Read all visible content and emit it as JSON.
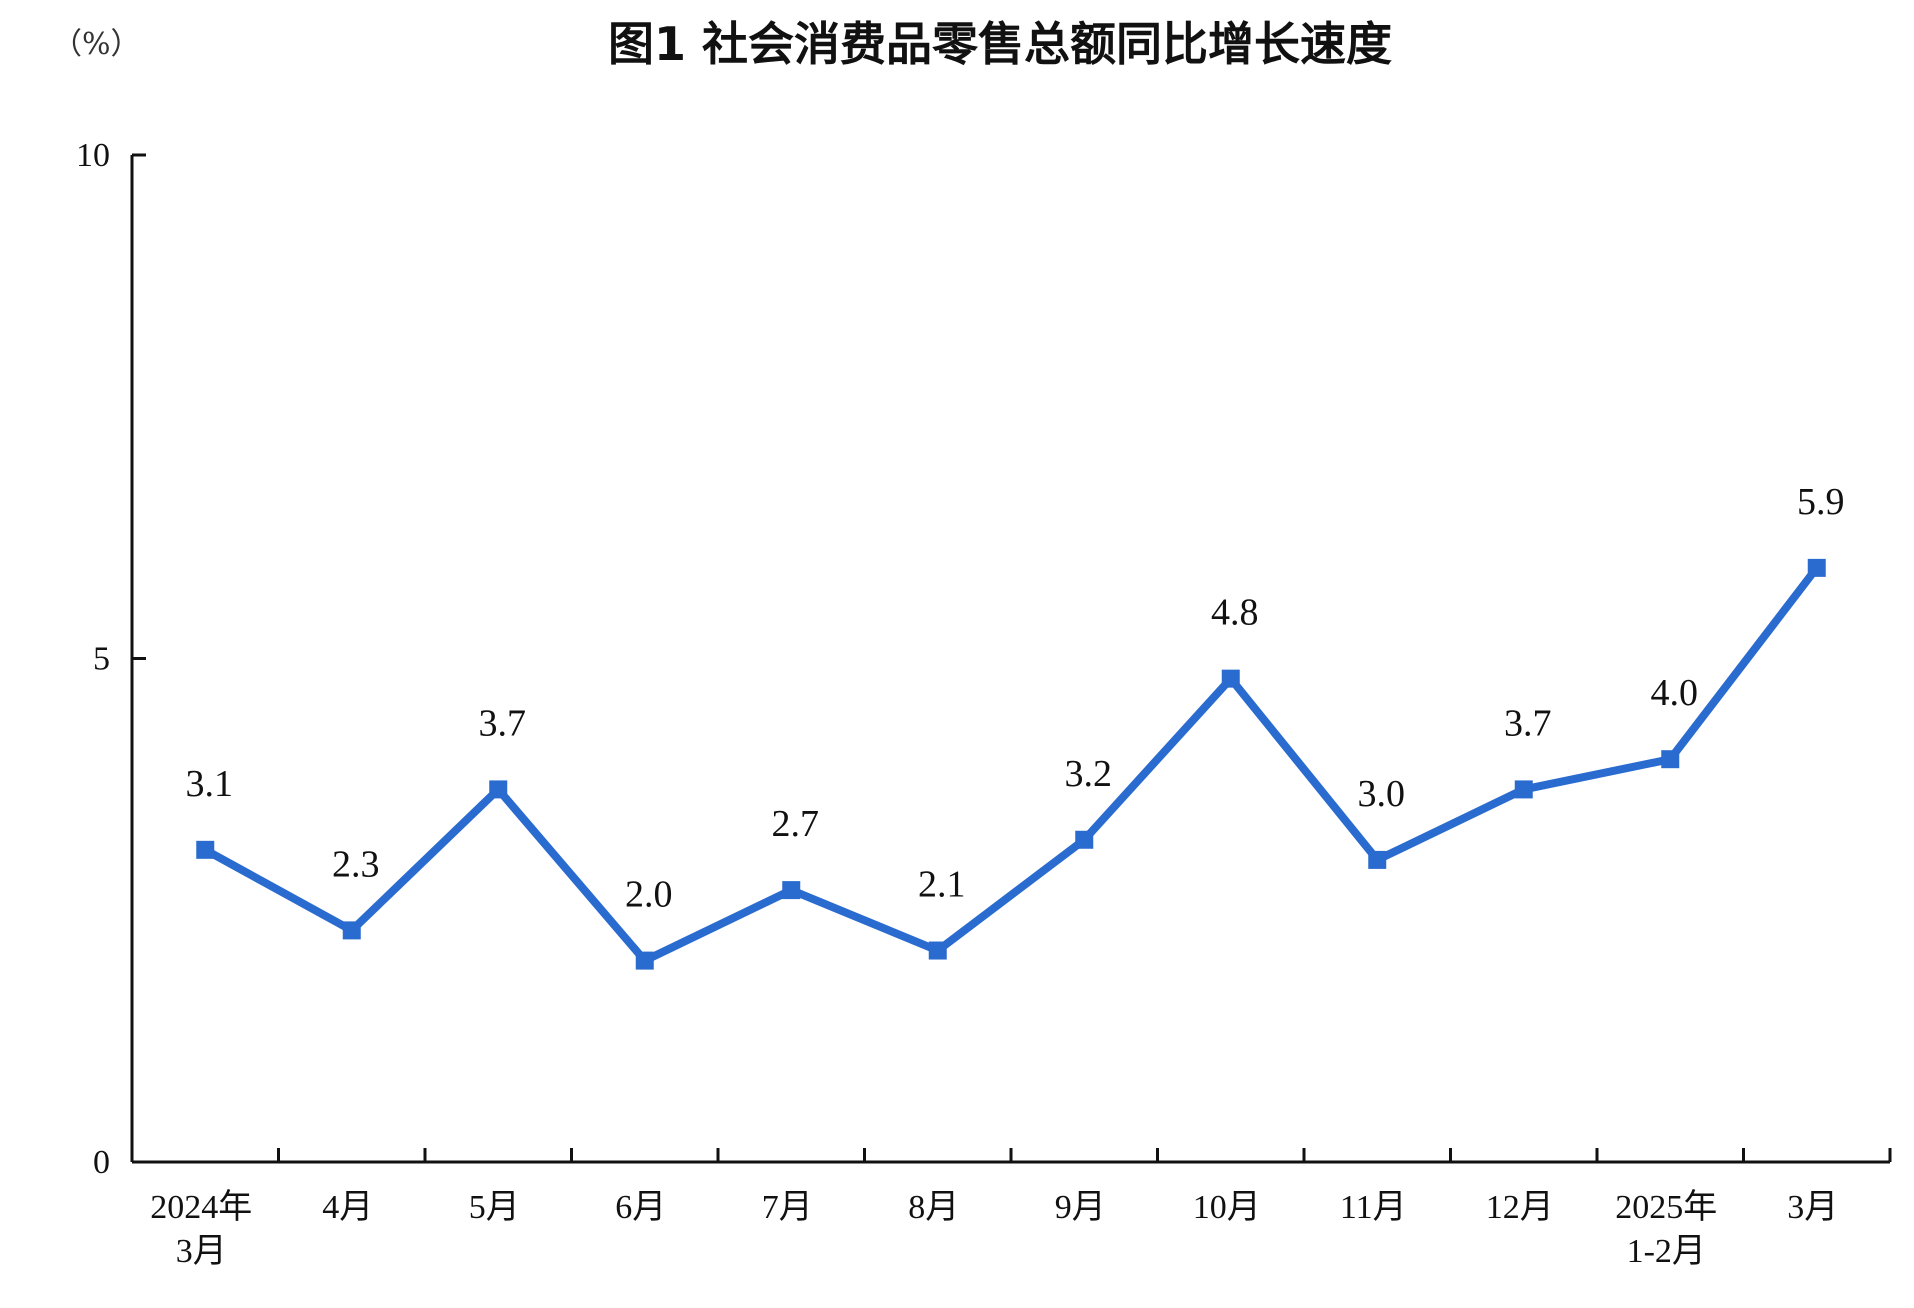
{
  "chart_data": {
    "type": "line",
    "title": "图1  社会消费品零售总额同比增长速度",
    "unit_label": "（%）",
    "categories": [
      [
        "2024年",
        "3月"
      ],
      [
        "4月"
      ],
      [
        "5月"
      ],
      [
        "6月"
      ],
      [
        "7月"
      ],
      [
        "8月"
      ],
      [
        "9月"
      ],
      [
        "10月"
      ],
      [
        "11月"
      ],
      [
        "12月"
      ],
      [
        "2025年",
        "1-2月"
      ],
      [
        "3月"
      ]
    ],
    "values": [
      3.1,
      2.3,
      3.7,
      2.0,
      2.7,
      2.1,
      3.2,
      4.8,
      3.0,
      3.7,
      4.0,
      5.9
    ],
    "value_labels": [
      "3.1",
      "2.3",
      "3.7",
      "2.0",
      "2.7",
      "2.1",
      "3.2",
      "4.8",
      "3.0",
      "3.7",
      "4.0",
      "5.9"
    ],
    "ylim": [
      0,
      10
    ],
    "yticks": [
      "0",
      "5",
      "10"
    ],
    "ytick_values": [
      0,
      5,
      10
    ],
    "grid": false,
    "legend": "none",
    "color": "#2a6bd0"
  }
}
